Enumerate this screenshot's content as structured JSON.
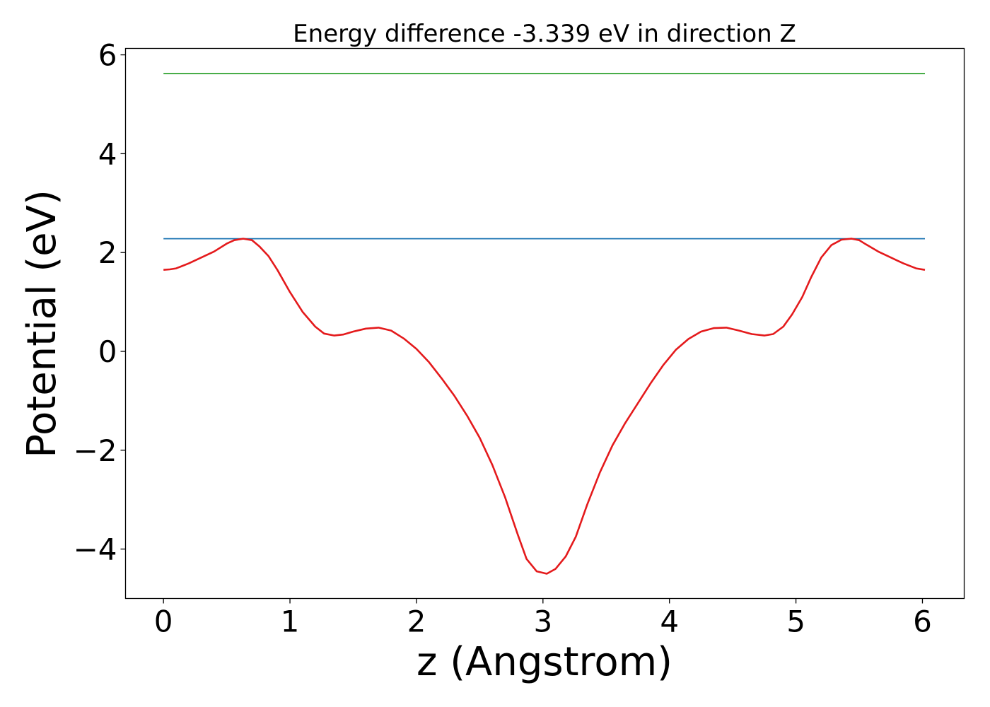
{
  "chart_data": {
    "type": "line",
    "title": "Energy difference -3.339 eV in direction Z",
    "xlabel": "z (Angstrom)",
    "ylabel": "Potential (eV)",
    "xlim": [
      -0.3,
      6.33
    ],
    "ylim": [
      -5.0,
      6.13
    ],
    "grid": false,
    "x_ticks": [
      0,
      1,
      2,
      3,
      4,
      5,
      6
    ],
    "x_tick_labels": [
      "0",
      "1",
      "2",
      "3",
      "4",
      "5",
      "6"
    ],
    "y_ticks": [
      -4,
      -2,
      0,
      2,
      4,
      6
    ],
    "y_tick_labels": [
      "−4",
      "−2",
      "0",
      "2",
      "4",
      "6"
    ],
    "series": [
      {
        "color": "#2ca02c",
        "x": [
          0,
          6.02
        ],
        "y": [
          5.62,
          5.62
        ]
      },
      {
        "color": "#1f77b4",
        "x": [
          0,
          6.02
        ],
        "y": [
          2.28,
          2.28
        ]
      },
      {
        "color": "#e41a1c",
        "x": [
          0,
          0.05,
          0.1,
          0.2,
          0.3,
          0.4,
          0.5,
          0.56,
          0.63,
          0.7,
          0.76,
          0.83,
          0.9,
          1.0,
          1.1,
          1.2,
          1.27,
          1.35,
          1.42,
          1.5,
          1.6,
          1.7,
          1.8,
          1.9,
          2.0,
          2.1,
          2.2,
          2.3,
          2.4,
          2.5,
          2.6,
          2.7,
          2.8,
          2.87,
          2.95,
          3.03,
          3.1,
          3.18,
          3.26,
          3.35,
          3.45,
          3.55,
          3.65,
          3.75,
          3.85,
          3.95,
          4.05,
          4.15,
          4.25,
          4.35,
          4.45,
          4.55,
          4.65,
          4.75,
          4.82,
          4.9,
          4.97,
          5.05,
          5.12,
          5.2,
          5.28,
          5.36,
          5.44,
          5.5,
          5.55,
          5.65,
          5.75,
          5.85,
          5.95,
          6.02
        ],
        "y": [
          1.65,
          1.66,
          1.68,
          1.78,
          1.9,
          2.02,
          2.18,
          2.25,
          2.28,
          2.25,
          2.12,
          1.93,
          1.65,
          1.2,
          0.8,
          0.5,
          0.36,
          0.32,
          0.34,
          0.4,
          0.46,
          0.48,
          0.42,
          0.26,
          0.05,
          -0.22,
          -0.55,
          -0.9,
          -1.3,
          -1.75,
          -2.3,
          -2.95,
          -3.7,
          -4.2,
          -4.45,
          -4.5,
          -4.4,
          -4.15,
          -3.75,
          -3.1,
          -2.45,
          -1.9,
          -1.45,
          -1.05,
          -0.65,
          -0.28,
          0.03,
          0.25,
          0.4,
          0.47,
          0.48,
          0.42,
          0.35,
          0.32,
          0.35,
          0.5,
          0.75,
          1.1,
          1.5,
          1.9,
          2.15,
          2.26,
          2.28,
          2.25,
          2.17,
          2.02,
          1.9,
          1.78,
          1.68,
          1.65
        ]
      }
    ]
  }
}
